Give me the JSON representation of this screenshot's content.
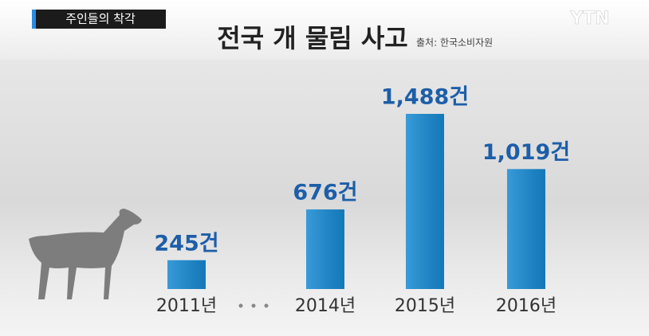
{
  "tag": "주인들의 착각",
  "logo": "YTN",
  "chart_data": {
    "type": "bar",
    "title": "전국 개 물림 사고",
    "source": "출처: 한국소비자원",
    "categories": [
      "2011년",
      "2014년",
      "2015년",
      "2016년"
    ],
    "values": [
      245,
      676,
      1488,
      1019
    ],
    "value_labels": [
      "245건",
      "676건",
      "1,488건",
      "1,019건"
    ],
    "color": "#1689d2"
  }
}
